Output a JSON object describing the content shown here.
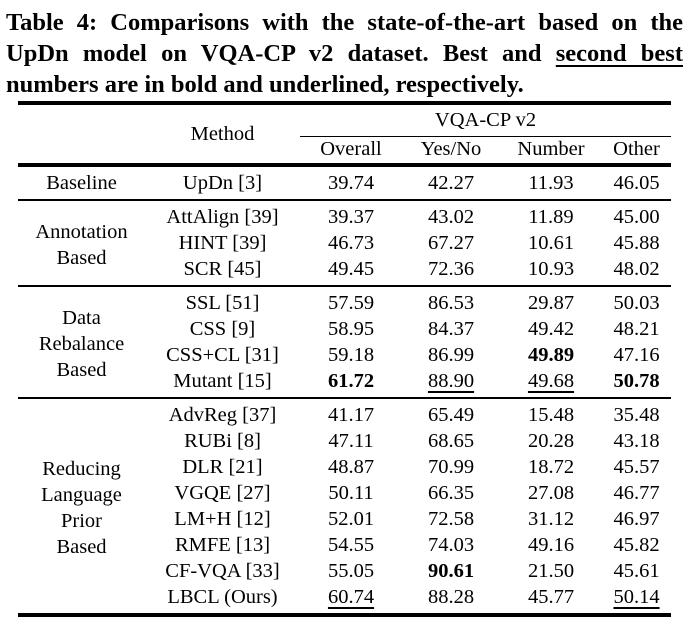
{
  "colors": {
    "text": "#000000",
    "background": "#ffffff"
  },
  "caption": {
    "line1": "Table 4: Comparisons with the state-of-the-art based on the",
    "line2_pre": "UpDn model on VQA-CP v2 dataset. Best and ",
    "line2_underline": "second best",
    "line3": "numbers are in bold and underlined, respectively."
  },
  "table": {
    "header": {
      "method": "Method",
      "dataset": "VQA-CP v2",
      "columns": [
        "Overall",
        "Yes/No",
        "Number",
        "Other"
      ]
    },
    "groups": [
      {
        "category": [
          "Baseline"
        ],
        "rows": [
          {
            "method": "UpDn [3]",
            "values": [
              "39.74",
              "42.27",
              "11.93",
              "46.05"
            ],
            "styles": [
              "",
              "",
              "",
              ""
            ]
          }
        ]
      },
      {
        "category": [
          "Annotation",
          "Based"
        ],
        "rows": [
          {
            "method": "AttAlign [39]",
            "values": [
              "39.37",
              "43.02",
              "11.89",
              "45.00"
            ],
            "styles": [
              "",
              "",
              "",
              ""
            ]
          },
          {
            "method": "HINT [39]",
            "values": [
              "46.73",
              "67.27",
              "10.61",
              "45.88"
            ],
            "styles": [
              "",
              "",
              "",
              ""
            ]
          },
          {
            "method": "SCR [45]",
            "values": [
              "49.45",
              "72.36",
              "10.93",
              "48.02"
            ],
            "styles": [
              "",
              "",
              "",
              ""
            ]
          }
        ]
      },
      {
        "category": [
          "Data",
          "Rebalance",
          "Based"
        ],
        "rows": [
          {
            "method": "SSL [51]",
            "values": [
              "57.59",
              "86.53",
              "29.87",
              "50.03"
            ],
            "styles": [
              "",
              "",
              "",
              ""
            ]
          },
          {
            "method": "CSS [9]",
            "values": [
              "58.95",
              "84.37",
              "49.42",
              "48.21"
            ],
            "styles": [
              "",
              "",
              "",
              ""
            ]
          },
          {
            "method": "CSS+CL [31]",
            "values": [
              "59.18",
              "86.99",
              "49.89",
              "47.16"
            ],
            "styles": [
              "",
              "",
              "b",
              ""
            ]
          },
          {
            "method": "Mutant [15]",
            "values": [
              "61.72",
              "88.90",
              "49.68",
              "50.78"
            ],
            "styles": [
              "b",
              "u",
              "u",
              "b"
            ]
          }
        ]
      },
      {
        "category": [
          "Reducing",
          "Language",
          "Prior",
          "Based"
        ],
        "rows": [
          {
            "method": "AdvReg [37]",
            "values": [
              "41.17",
              "65.49",
              "15.48",
              "35.48"
            ],
            "styles": [
              "",
              "",
              "",
              ""
            ]
          },
          {
            "method": "RUBi [8]",
            "values": [
              "47.11",
              "68.65",
              "20.28",
              "43.18"
            ],
            "styles": [
              "",
              "",
              "",
              ""
            ]
          },
          {
            "method": "DLR [21]",
            "values": [
              "48.87",
              "70.99",
              "18.72",
              "45.57"
            ],
            "styles": [
              "",
              "",
              "",
              ""
            ]
          },
          {
            "method": "VGQE [27]",
            "values": [
              "50.11",
              "66.35",
              "27.08",
              "46.77"
            ],
            "styles": [
              "",
              "",
              "",
              ""
            ]
          },
          {
            "method": "LM+H [12]",
            "values": [
              "52.01",
              "72.58",
              "31.12",
              "46.97"
            ],
            "styles": [
              "",
              "",
              "",
              ""
            ]
          },
          {
            "method": "RMFE [13]",
            "values": [
              "54.55",
              "74.03",
              "49.16",
              "45.82"
            ],
            "styles": [
              "",
              "",
              "",
              ""
            ]
          },
          {
            "method": "CF-VQA [33]",
            "values": [
              "55.05",
              "90.61",
              "21.50",
              "45.61"
            ],
            "styles": [
              "",
              "b",
              "",
              ""
            ]
          },
          {
            "method": "LBCL (Ours)",
            "values": [
              "60.74",
              "88.28",
              "45.77",
              "50.14"
            ],
            "styles": [
              "u",
              "",
              "",
              "u"
            ]
          }
        ]
      }
    ]
  }
}
